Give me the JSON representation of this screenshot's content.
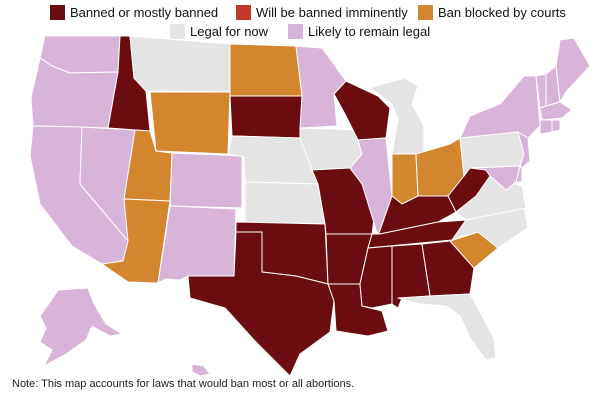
{
  "legend": {
    "items": [
      {
        "id": "banned",
        "label": "Banned or mostly banned",
        "color": "#6b0d10"
      },
      {
        "id": "imminent",
        "label": "Will be banned imminently",
        "color": "#c0392b"
      },
      {
        "id": "blocked",
        "label": "Ban blocked by courts",
        "color": "#d4862f"
      },
      {
        "id": "legal_now",
        "label": "Legal for now",
        "color": "#e4e4e4"
      },
      {
        "id": "remain_legal",
        "label": "Likely to remain legal",
        "color": "#d8b5d8"
      }
    ]
  },
  "map_data": {
    "states": {
      "WA": "remain_legal",
      "OR": "remain_legal",
      "CA": "remain_legal",
      "NV": "remain_legal",
      "ID": "banned",
      "MT": "legal_now",
      "WY": "blocked",
      "UT": "blocked",
      "AZ": "blocked",
      "CO": "remain_legal",
      "NM": "remain_legal",
      "ND": "blocked",
      "SD": "banned",
      "NE": "legal_now",
      "KS": "legal_now",
      "OK": "banned",
      "TX": "banned",
      "MN": "remain_legal",
      "IA": "legal_now",
      "MO": "banned",
      "AR": "banned",
      "LA": "banned",
      "WI": "banned",
      "IL": "remain_legal",
      "MI": "legal_now",
      "IN": "blocked",
      "OH": "blocked",
      "KY": "banned",
      "TN": "banned",
      "MS": "banned",
      "AL": "banned",
      "GA": "banned",
      "FL": "legal_now",
      "SC": "blocked",
      "NC": "legal_now",
      "VA": "legal_now",
      "WV": "banned",
      "PA": "legal_now",
      "NY": "remain_legal",
      "VT": "remain_legal",
      "NH": "remain_legal",
      "ME": "remain_legal",
      "MA": "remain_legal",
      "RI": "remain_legal",
      "CT": "remain_legal",
      "NJ": "remain_legal",
      "DE": "remain_legal",
      "MD": "remain_legal",
      "AK": "remain_legal",
      "HI": "remain_legal"
    }
  },
  "note": "Note: This map accounts for laws that would ban most or all abortions."
}
